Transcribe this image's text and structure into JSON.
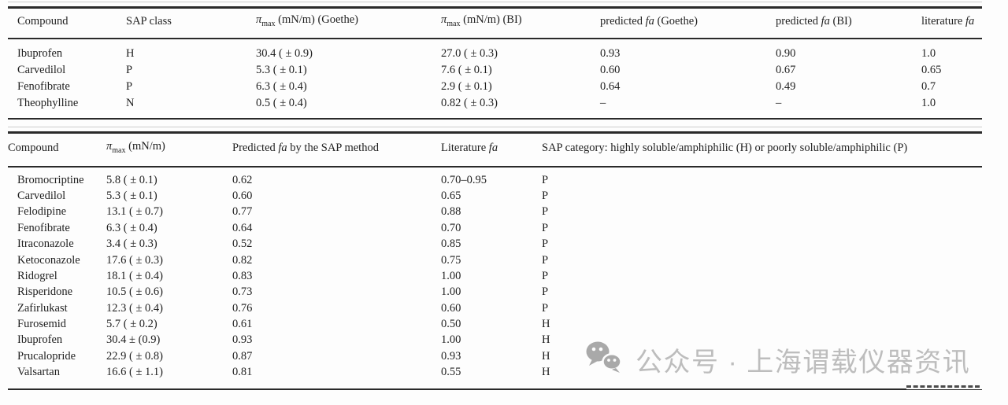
{
  "page": {
    "background": "#fdfdfd",
    "text_color": "#1f1f1f",
    "rule_color": "#2a2a2a",
    "watermark_color": "#bdbdbd"
  },
  "table1": {
    "headers": {
      "compound": "Compound",
      "sap_class": "SAP class",
      "pi": "π",
      "pi_sub": "max",
      "pi_goethe_rest": " (mN/m) (Goethe)",
      "pi_bi_rest": " (mN/m) (BI)",
      "predicted": "predicted ",
      "fa": "fa",
      "goethe": " (Goethe)",
      "bi": " (BI)",
      "literature": "literature "
    },
    "rows": [
      {
        "compound": "Ibuprofen",
        "sap_class": "H",
        "pi_goethe": "30.4 ( ± 0.9)",
        "pi_bi": "27.0 ( ± 0.3)",
        "fa_goethe": "0.93",
        "fa_bi": "0.90",
        "fa_lit": "1.0"
      },
      {
        "compound": "Carvedilol",
        "sap_class": "P",
        "pi_goethe": "5.3 ( ± 0.1)",
        "pi_bi": "7.6 ( ± 0.1)",
        "fa_goethe": "0.60",
        "fa_bi": "0.67",
        "fa_lit": "0.65"
      },
      {
        "compound": "Fenofibrate",
        "sap_class": "P",
        "pi_goethe": "6.3 ( ± 0.4)",
        "pi_bi": "2.9 ( ± 0.1)",
        "fa_goethe": "0.64",
        "fa_bi": "0.49",
        "fa_lit": "0.7"
      },
      {
        "compound": "Theophylline",
        "sap_class": "N",
        "pi_goethe": "0.5 ( ± 0.4)",
        "pi_bi": "0.82 ( ± 0.3)",
        "fa_goethe": "–",
        "fa_bi": "–",
        "fa_lit": "1.0"
      }
    ]
  },
  "table2": {
    "headers": {
      "compound": "Compound",
      "pi": "π",
      "pi_sub": "max",
      "pi_rest": " (mN/m)",
      "predicted": "Predicted ",
      "fa": "fa",
      "predicted_rest": " by the SAP method",
      "literature": "Literature ",
      "sap_category": "SAP category: highly soluble/amphiphilic (H) or poorly soluble/amphiphilic (P)"
    },
    "rows": [
      {
        "compound": "Bromocriptine",
        "pi": "5.8 ( ± 0.1)",
        "fa_pred": "0.62",
        "fa_lit": "0.70–0.95",
        "category": "P"
      },
      {
        "compound": "Carvedilol",
        "pi": "5.3 ( ± 0.1)",
        "fa_pred": "0.60",
        "fa_lit": "0.65",
        "category": "P"
      },
      {
        "compound": "Felodipine",
        "pi": "13.1 ( ± 0.7)",
        "fa_pred": "0.77",
        "fa_lit": "0.88",
        "category": "P"
      },
      {
        "compound": "Fenofibrate",
        "pi": "6.3 ( ± 0.4)",
        "fa_pred": "0.64",
        "fa_lit": "0.70",
        "category": "P"
      },
      {
        "compound": "Itraconazole",
        "pi": "3.4 ( ± 0.3)",
        "fa_pred": "0.52",
        "fa_lit": "0.85",
        "category": "P"
      },
      {
        "compound": "Ketoconazole",
        "pi": "17.6 ( ± 0.3)",
        "fa_pred": "0.82",
        "fa_lit": "0.75",
        "category": "P"
      },
      {
        "compound": "Ridogrel",
        "pi": "18.1 ( ± 0.4)",
        "fa_pred": "0.83",
        "fa_lit": "1.00",
        "category": "P"
      },
      {
        "compound": "Risperidone",
        "pi": "10.5 ( ± 0.6)",
        "fa_pred": "0.73",
        "fa_lit": "1.00",
        "category": "P"
      },
      {
        "compound": "Zafirlukast",
        "pi": "12.3 ( ± 0.4)",
        "fa_pred": "0.76",
        "fa_lit": "0.60",
        "category": "P"
      },
      {
        "compound": "Furosemid",
        "pi": "5.7 ( ± 0.2)",
        "fa_pred": "0.61",
        "fa_lit": "0.50",
        "category": "H"
      },
      {
        "compound": "Ibuprofen",
        "pi": "30.4 ± (0.9)",
        "fa_pred": "0.93",
        "fa_lit": "1.00",
        "category": "H"
      },
      {
        "compound": "Prucalopride",
        "pi": "22.9 ( ± 0.8)",
        "fa_pred": "0.87",
        "fa_lit": "0.93",
        "category": "H"
      },
      {
        "compound": "Valsartan",
        "pi": "16.6 ( ± 1.1)",
        "fa_pred": "0.81",
        "fa_lit": "0.55",
        "category": "H"
      }
    ]
  },
  "watermark": {
    "text": "公众号 · 上海谓载仪器资讯"
  }
}
